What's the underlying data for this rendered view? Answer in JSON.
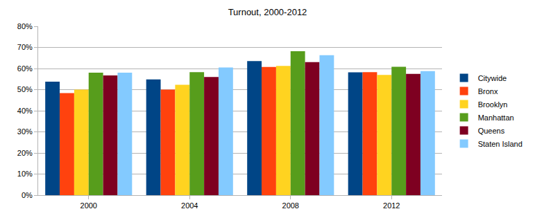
{
  "chart_data": {
    "type": "bar",
    "title": "Turnout, 2000-2012",
    "categories": [
      "2000",
      "2004",
      "2008",
      "2012"
    ],
    "series": [
      {
        "name": "Citywide",
        "color": "#004586",
        "values": [
          53.8,
          54.8,
          63.5,
          58.2
        ]
      },
      {
        "name": "Bronx",
        "color": "#ff420e",
        "values": [
          48.4,
          50.0,
          60.7,
          58.3
        ]
      },
      {
        "name": "Brooklyn",
        "color": "#ffd320",
        "values": [
          50.0,
          52.3,
          61.2,
          57.0
        ]
      },
      {
        "name": "Manhattan",
        "color": "#579d1c",
        "values": [
          58.0,
          58.3,
          68.2,
          60.8
        ]
      },
      {
        "name": "Queens",
        "color": "#7e0021",
        "values": [
          56.7,
          56.0,
          63.0,
          57.5
        ]
      },
      {
        "name": "Staten Island",
        "color": "#83caff",
        "values": [
          58.0,
          60.5,
          66.3,
          58.8
        ]
      }
    ],
    "ylim": [
      0,
      80
    ],
    "yticks": [
      {
        "value": 0,
        "label": "0%"
      },
      {
        "value": 10,
        "label": "10%"
      },
      {
        "value": 20,
        "label": "20%"
      },
      {
        "value": 30,
        "label": "30%"
      },
      {
        "value": 40,
        "label": "40%"
      },
      {
        "value": 50,
        "label": "50%"
      },
      {
        "value": 60,
        "label": "60%"
      },
      {
        "value": 70,
        "label": "70%"
      },
      {
        "value": 80,
        "label": "80%"
      }
    ],
    "grid": true,
    "legend": "right"
  }
}
